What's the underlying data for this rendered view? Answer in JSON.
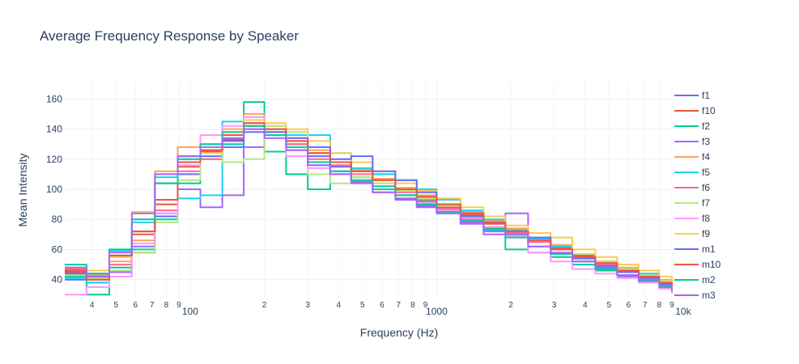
{
  "chart_data": {
    "type": "line",
    "title": "Average Frequency Response by Speaker",
    "xlabel": "Frequency (Hz)",
    "ylabel": "Mean Intensity",
    "x_scale": "log",
    "xlim": [
      31,
      9000
    ],
    "ylim": [
      28,
      172
    ],
    "y_ticks": [
      40,
      60,
      80,
      100,
      120,
      140,
      160
    ],
    "x_major_ticks": [
      {
        "value": 100,
        "label": "100"
      },
      {
        "value": 1000,
        "label": "1000"
      },
      {
        "value": 10000,
        "label": "10k"
      }
    ],
    "x_minor_ticks": [
      {
        "value": 40,
        "label": "4"
      },
      {
        "value": 50,
        "label": "5"
      },
      {
        "value": 60,
        "label": "6"
      },
      {
        "value": 70,
        "label": "7"
      },
      {
        "value": 80,
        "label": "8"
      },
      {
        "value": 90,
        "label": "9"
      },
      {
        "value": 200,
        "label": "2"
      },
      {
        "value": 300,
        "label": "3"
      },
      {
        "value": 400,
        "label": "4"
      },
      {
        "value": 500,
        "label": "5"
      },
      {
        "value": 600,
        "label": "6"
      },
      {
        "value": 700,
        "label": "7"
      },
      {
        "value": 800,
        "label": "8"
      },
      {
        "value": 900,
        "label": "9"
      },
      {
        "value": 2000,
        "label": "2"
      },
      {
        "value": 3000,
        "label": "3"
      },
      {
        "value": 4000,
        "label": "4"
      },
      {
        "value": 5000,
        "label": "5"
      },
      {
        "value": 6000,
        "label": "6"
      },
      {
        "value": 7000,
        "label": "7"
      },
      {
        "value": 8000,
        "label": "8"
      },
      {
        "value": 9000,
        "label": "9"
      }
    ],
    "grid": true,
    "legend_position": "right",
    "x": [
      31,
      38,
      47,
      58,
      72,
      89,
      110,
      135,
      165,
      200,
      245,
      300,
      370,
      450,
      550,
      680,
      830,
      1000,
      1250,
      1550,
      1900,
      2350,
      2900,
      3550,
      4400,
      5400,
      6600,
      8000,
      9000
    ],
    "series": [
      {
        "name": "f1",
        "color": "#636efa",
        "values": [
          40,
          38,
          45,
          58,
          82,
          110,
          122,
          128,
          138,
          136,
          130,
          122,
          115,
          118,
          110,
          100,
          95,
          88,
          82,
          75,
          70,
          66,
          62,
          55,
          50,
          46,
          42,
          38,
          35
        ]
      },
      {
        "name": "f10",
        "color": "#EF553B",
        "values": [
          45,
          42,
          55,
          70,
          90,
          115,
          125,
          133,
          142,
          140,
          132,
          124,
          118,
          112,
          106,
          100,
          94,
          88,
          83,
          77,
          72,
          67,
          61,
          56,
          52,
          47,
          43,
          39,
          36
        ]
      },
      {
        "name": "f2",
        "color": "#00cc96",
        "values": [
          42,
          30,
          48,
          60,
          80,
          104,
          120,
          130,
          158,
          125,
          110,
          100,
          110,
          108,
          102,
          96,
          92,
          86,
          80,
          74,
          60,
          58,
          55,
          50,
          46,
          42,
          39,
          35,
          32
        ]
      },
      {
        "name": "f3",
        "color": "#ab63fa",
        "values": [
          44,
          40,
          45,
          62,
          84,
          100,
          88,
          96,
          128,
          140,
          126,
          116,
          112,
          105,
          98,
          93,
          89,
          84,
          77,
          70,
          84,
          65,
          57,
          52,
          47,
          42,
          38,
          34,
          31
        ]
      },
      {
        "name": "f4",
        "color": "#FFA15A",
        "values": [
          46,
          43,
          52,
          66,
          112,
          128,
          130,
          140,
          150,
          142,
          134,
          126,
          120,
          113,
          107,
          101,
          96,
          90,
          85,
          79,
          74,
          68,
          63,
          57,
          52,
          48,
          44,
          40,
          37
        ]
      },
      {
        "name": "f5",
        "color": "#19d3f3",
        "values": [
          41,
          38,
          59,
          78,
          108,
          94,
          96,
          145,
          148,
          140,
          136,
          136,
          124,
          114,
          110,
          106,
          100,
          93,
          86,
          80,
          73,
          67,
          62,
          54,
          50,
          47,
          44,
          38,
          34
        ]
      },
      {
        "name": "f6",
        "color": "#FF6692",
        "values": [
          47,
          44,
          50,
          64,
          86,
          112,
          120,
          134,
          144,
          138,
          130,
          120,
          116,
          110,
          104,
          98,
          93,
          87,
          80,
          75,
          71,
          65,
          60,
          55,
          50,
          45,
          41,
          37,
          34
        ]
      },
      {
        "name": "f7",
        "color": "#B6E880",
        "values": [
          43,
          41,
          46,
          58,
          78,
          106,
          130,
          118,
          120,
          142,
          138,
          110,
          104,
          108,
          104,
          99,
          94,
          89,
          84,
          78,
          72,
          66,
          68,
          57,
          52,
          47,
          43,
          39,
          36
        ]
      },
      {
        "name": "f8",
        "color": "#FF97FF",
        "values": [
          30,
          35,
          42,
          64,
          84,
          116,
          136,
          142,
          148,
          136,
          122,
          114,
          110,
          106,
          100,
          96,
          91,
          86,
          81,
          75,
          69,
          58,
          52,
          47,
          44,
          41,
          38,
          34,
          31
        ]
      },
      {
        "name": "f9",
        "color": "#FECB52",
        "values": [
          48,
          46,
          55,
          85,
          110,
          120,
          124,
          136,
          146,
          144,
          140,
          132,
          124,
          118,
          112,
          104,
          99,
          94,
          88,
          82,
          76,
          71,
          68,
          60,
          55,
          50,
          46,
          42,
          38
        ]
      },
      {
        "name": "m1",
        "color": "#636efa",
        "values": [
          44,
          42,
          56,
          72,
          104,
          122,
          126,
          132,
          140,
          138,
          134,
          128,
          120,
          122,
          112,
          106,
          98,
          90,
          84,
          78,
          72,
          68,
          60,
          54,
          49,
          45,
          41,
          37,
          34
        ]
      },
      {
        "name": "m10",
        "color": "#EF553B",
        "values": [
          46,
          40,
          56,
          72,
          93,
          118,
          126,
          136,
          144,
          140,
          132,
          124,
          118,
          112,
          106,
          100,
          95,
          90,
          84,
          78,
          72,
          66,
          60,
          55,
          51,
          46,
          42,
          38,
          35
        ]
      },
      {
        "name": "m2",
        "color": "#00cc96",
        "values": [
          50,
          44,
          60,
          80,
          104,
          120,
          130,
          138,
          142,
          136,
          128,
          118,
          112,
          106,
          100,
          96,
          90,
          85,
          79,
          73,
          68,
          62,
          57,
          52,
          47,
          43,
          39,
          35,
          32
        ]
      },
      {
        "name": "m3",
        "color": "#ab63fa",
        "values": [
          48,
          42,
          58,
          84,
          110,
          122,
          128,
          134,
          140,
          134,
          126,
          116,
          110,
          104,
          98,
          94,
          88,
          84,
          78,
          72,
          70,
          62,
          58,
          52,
          48,
          43,
          40,
          36,
          33
        ]
      }
    ]
  }
}
